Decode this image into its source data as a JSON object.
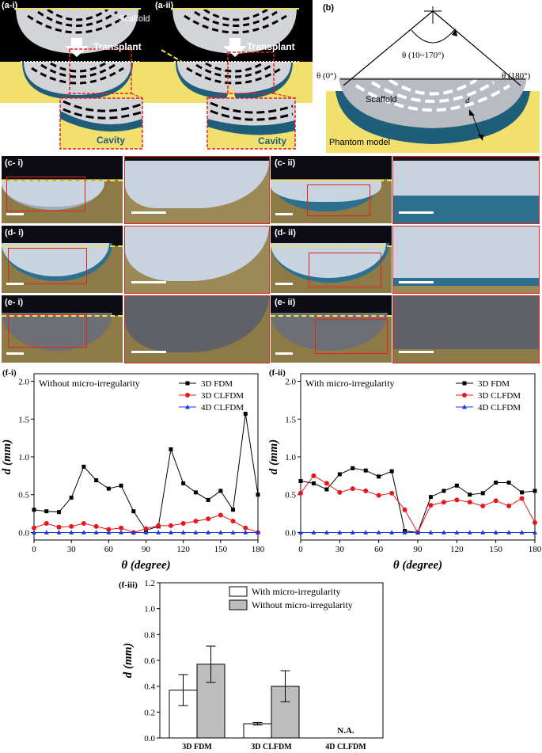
{
  "panel_a": {
    "label_i": "(a-i)",
    "label_ii": "(a-ii)",
    "scaffold": "Scaffold",
    "transplant": "Transplant",
    "cavity": "Cavity"
  },
  "panel_b": {
    "label": "(b)",
    "theta_range": "θ (10~170°)",
    "theta_0": "θ (0°)",
    "theta_180": "θ (180°)",
    "scaffold": "Scaffold",
    "d": "d",
    "phantom": "Phantom model"
  },
  "photo_rows": [
    {
      "left_label": "(c- i)",
      "right_label": "(c- ii)"
    },
    {
      "left_label": "(d- i)",
      "right_label": "(d- ii)"
    },
    {
      "left_label": "(e- i)",
      "right_label": "(e- ii)"
    }
  ],
  "colors": {
    "yellow": "#f1df6e",
    "teal": "#1f5e7a",
    "scaffold_grey": "#cfd2d6",
    "red": "#e52222",
    "fdm": "#000000",
    "clfdm3d": "#e8171a",
    "clfdm4d": "#1f35e0",
    "bar_white": "#ffffff",
    "bar_grey": "#bdbdbd"
  },
  "chart_data": [
    {
      "panel": "(f-i)",
      "type": "line",
      "annotation": "Without micro-irregularity",
      "xlabel": "θ (degree)",
      "ylabel": "d (mm)",
      "xlim": [
        0,
        180
      ],
      "ylim": [
        -0.1,
        2.1
      ],
      "xticks": [
        0,
        30,
        60,
        90,
        120,
        150,
        180
      ],
      "yticks": [
        0.0,
        0.5,
        1.0,
        1.5,
        2.0
      ],
      "legend_position": "top-right",
      "x": [
        0,
        10,
        20,
        30,
        40,
        50,
        60,
        70,
        80,
        90,
        100,
        110,
        120,
        130,
        140,
        150,
        160,
        170,
        180
      ],
      "series": [
        {
          "name": "3D FDM",
          "marker": "square",
          "values": [
            0.3,
            0.28,
            0.27,
            0.46,
            0.87,
            0.69,
            0.58,
            0.62,
            0.28,
            0.03,
            0.08,
            1.1,
            0.65,
            0.53,
            0.43,
            0.55,
            0.3,
            1.57,
            0.5
          ]
        },
        {
          "name": "3D CLFDM",
          "marker": "circle",
          "values": [
            0.06,
            0.12,
            0.07,
            0.08,
            0.12,
            0.08,
            0.04,
            0.06,
            0.0,
            0.05,
            0.09,
            0.09,
            0.12,
            0.15,
            0.18,
            0.23,
            0.15,
            0.06,
            0.0
          ]
        },
        {
          "name": "4D CLFDM",
          "marker": "triangle",
          "values": [
            0.0,
            0.0,
            0.0,
            0.0,
            0.0,
            0.0,
            0.0,
            0.0,
            0.0,
            0.0,
            0.0,
            0.0,
            0.0,
            0.0,
            0.0,
            0.0,
            0.0,
            0.0,
            0.0
          ]
        }
      ]
    },
    {
      "panel": "(f-ii)",
      "type": "line",
      "annotation": "With micro-irregularity",
      "xlabel": "θ (degree)",
      "ylabel": "d (mm)",
      "xlim": [
        0,
        180
      ],
      "ylim": [
        -0.1,
        2.1
      ],
      "xticks": [
        0,
        30,
        60,
        90,
        120,
        150,
        180
      ],
      "yticks": [
        0.0,
        0.5,
        1.0,
        1.5,
        2.0
      ],
      "legend_position": "top-right",
      "x": [
        0,
        10,
        20,
        30,
        40,
        50,
        60,
        70,
        80,
        90,
        100,
        110,
        120,
        130,
        140,
        150,
        160,
        170,
        180
      ],
      "series": [
        {
          "name": "3D FDM",
          "marker": "square",
          "values": [
            0.68,
            0.65,
            0.57,
            0.77,
            0.85,
            0.82,
            0.74,
            0.81,
            0.02,
            0.0,
            0.47,
            0.55,
            0.62,
            0.5,
            0.52,
            0.66,
            0.66,
            0.53,
            0.55
          ]
        },
        {
          "name": "3D CLFDM",
          "marker": "circle",
          "values": [
            0.52,
            0.75,
            0.65,
            0.53,
            0.58,
            0.55,
            0.49,
            0.52,
            0.3,
            0.0,
            0.36,
            0.4,
            0.43,
            0.4,
            0.35,
            0.42,
            0.35,
            0.45,
            0.13
          ]
        },
        {
          "name": "4D CLFDM",
          "marker": "triangle",
          "values": [
            0.0,
            0.0,
            0.0,
            0.0,
            0.0,
            0.0,
            0.0,
            0.0,
            0.0,
            0.0,
            0.0,
            0.0,
            0.0,
            0.0,
            0.0,
            0.0,
            0.0,
            0.0,
            0.0
          ]
        }
      ]
    },
    {
      "panel": "(f-iii)",
      "type": "bar",
      "ylabel": "d (mm)",
      "ylim": [
        0,
        1.2
      ],
      "yticks": [
        "0.0",
        "0.2",
        "0.4",
        "0.6",
        "0.8",
        "1.0",
        "1.2"
      ],
      "categories": [
        "3D FDM",
        "3D CLFDM",
        "4D CLFDM"
      ],
      "legend_position": "top",
      "na_label": "N.A.",
      "series": [
        {
          "name": "With micro-irregularity",
          "values": [
            0.37,
            0.11,
            null
          ],
          "errors": [
            0.12,
            0.01,
            null
          ]
        },
        {
          "name": "Without micro-irregularity",
          "values": [
            0.57,
            0.4,
            null
          ],
          "errors": [
            0.14,
            0.12,
            null
          ]
        }
      ]
    }
  ]
}
